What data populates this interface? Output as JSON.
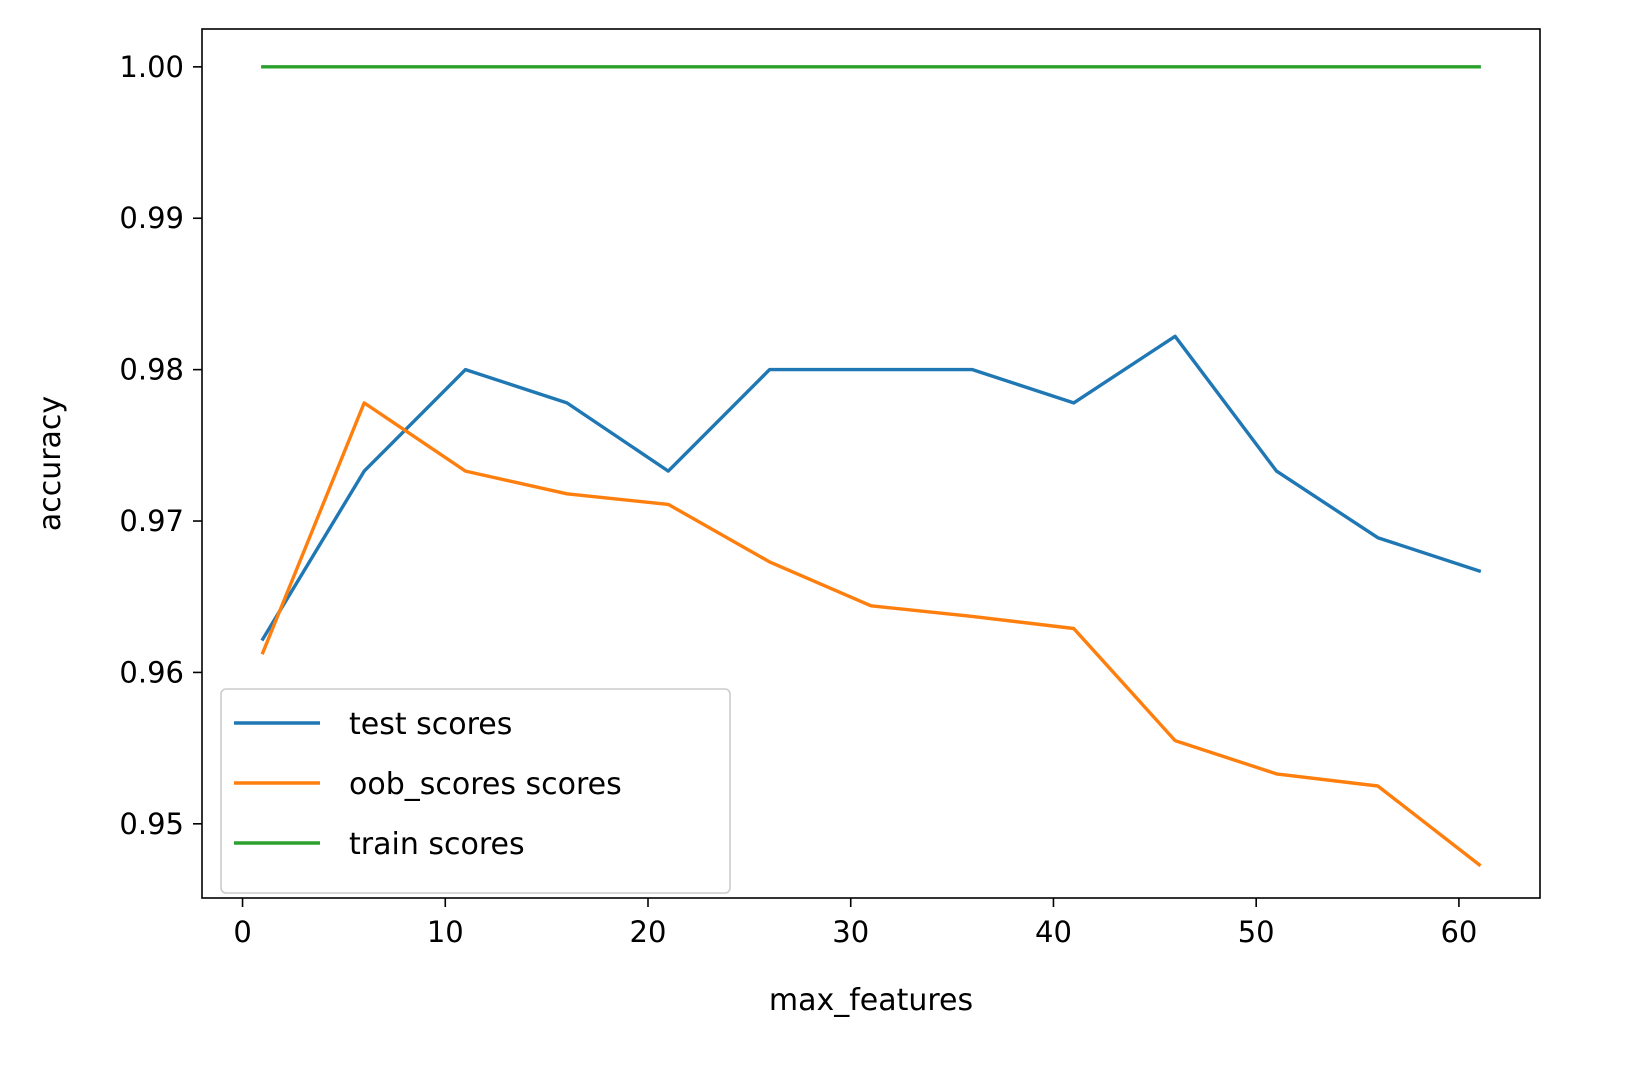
{
  "chart_data": {
    "type": "line",
    "title": "",
    "xlabel": "max_features",
    "ylabel": "accuracy",
    "xlim": [
      -2,
      64
    ],
    "ylim": [
      0.9451,
      1.0025
    ],
    "xticks": [
      0,
      10,
      20,
      30,
      40,
      50,
      60
    ],
    "xtick_labels": [
      "0",
      "10",
      "20",
      "30",
      "40",
      "50",
      "60"
    ],
    "yticks": [
      0.95,
      0.96,
      0.97,
      0.98,
      0.99,
      1.0
    ],
    "ytick_labels": [
      "0.95",
      "0.96",
      "0.97",
      "0.98",
      "0.99",
      "1.00"
    ],
    "grid": false,
    "legend_position": "lower-left",
    "x": [
      1,
      6,
      11,
      16,
      21,
      26,
      31,
      36,
      41,
      46,
      51,
      56,
      61
    ],
    "series": [
      {
        "name": "test scores",
        "color": "#1f77b4",
        "values": [
          0.9622,
          0.9733,
          0.98,
          0.9778,
          0.9733,
          0.98,
          0.98,
          0.98,
          0.9778,
          0.9822,
          0.9733,
          0.9689,
          0.9667
        ]
      },
      {
        "name": "oob_scores scores",
        "color": "#ff7f0e",
        "values": [
          0.9613,
          0.9778,
          0.9733,
          0.9718,
          0.9711,
          0.9673,
          0.9644,
          0.9637,
          0.9629,
          0.9555,
          0.9533,
          0.9525,
          0.9473
        ]
      },
      {
        "name": "train scores",
        "color": "#2ca02c",
        "values": [
          1.0,
          1.0,
          1.0,
          1.0,
          1.0,
          1.0,
          1.0,
          1.0,
          1.0,
          1.0,
          1.0,
          1.0,
          1.0
        ]
      }
    ]
  }
}
